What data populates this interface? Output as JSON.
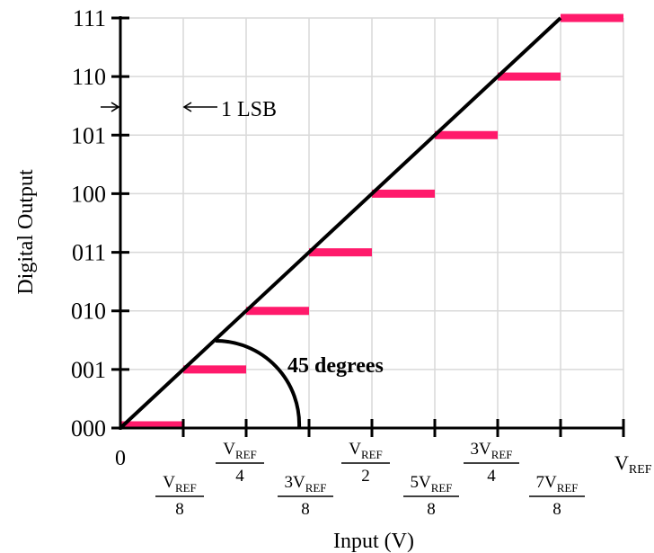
{
  "chart_data": {
    "type": "line",
    "title": "",
    "xlabel": "Input (V)",
    "ylabel": "Digital Output",
    "xlim": [
      0,
      1
    ],
    "ylim": [
      0,
      7
    ],
    "x_ticks": [
      0,
      0.125,
      0.25,
      0.375,
      0.5,
      0.625,
      0.75,
      0.875,
      1
    ],
    "x_tick_labels": [
      {
        "x": 0,
        "num": "0",
        "den": ""
      },
      {
        "x": 0.125,
        "num": "V",
        "sub": "REF",
        "den": "8"
      },
      {
        "x": 0.25,
        "num": "V",
        "sub": "REF",
        "den": "4"
      },
      {
        "x": 0.375,
        "num": "3V",
        "sub": "REF",
        "den": "8"
      },
      {
        "x": 0.5,
        "num": "V",
        "sub": "REF",
        "den": "2"
      },
      {
        "x": 0.625,
        "num": "5V",
        "sub": "REF",
        "den": "8"
      },
      {
        "x": 0.75,
        "num": "3V",
        "sub": "REF",
        "den": "4"
      },
      {
        "x": 0.875,
        "num": "7V",
        "sub": "REF",
        "den": "8"
      },
      {
        "x": 1,
        "num": "V",
        "sub": "REF",
        "den": ""
      }
    ],
    "y_tick_labels": [
      "000",
      "001",
      "010",
      "011",
      "100",
      "101",
      "110",
      "111"
    ],
    "series": [
      {
        "kind": "ideal-line",
        "color": "#000000",
        "x": [
          0,
          0.875
        ],
        "y": [
          0,
          7
        ]
      },
      {
        "kind": "quantized-steps",
        "color": "#ff1a6b",
        "steps": [
          {
            "code": "000",
            "x_start": 0,
            "x_end": 0.125
          },
          {
            "code": "001",
            "x_start": 0.125,
            "x_end": 0.25
          },
          {
            "code": "010",
            "x_start": 0.25,
            "x_end": 0.375
          },
          {
            "code": "011",
            "x_start": 0.375,
            "x_end": 0.5
          },
          {
            "code": "100",
            "x_start": 0.5,
            "x_end": 0.625
          },
          {
            "code": "101",
            "x_start": 0.625,
            "x_end": 0.75
          },
          {
            "code": "110",
            "x_start": 0.75,
            "x_end": 0.875
          },
          {
            "code": "111",
            "x_start": 0.875,
            "x_end": 1
          }
        ]
      }
    ],
    "grid": true,
    "annotations": {
      "lsb_label": "1 LSB",
      "angle_label": "45 degrees"
    }
  }
}
